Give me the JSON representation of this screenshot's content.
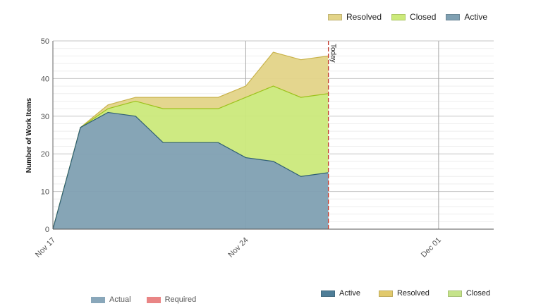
{
  "legend_top": [
    {
      "label": "Resolved",
      "color": "#e3d488"
    },
    {
      "label": "Closed",
      "color": "#ccea7a"
    },
    {
      "label": "Active",
      "color": "#7fa0b2"
    }
  ],
  "legend_bottom_right": [
    {
      "label": "Active",
      "color": "#4e7d97"
    },
    {
      "label": "Resolved",
      "color": "#e1c96c"
    },
    {
      "label": "Closed",
      "color": "#c5e38a"
    }
  ],
  "legend_bottom_left": [
    {
      "label": "Actual",
      "color": "#89a7ba"
    },
    {
      "label": "Required",
      "color": "#e98585"
    }
  ],
  "chart_data": {
    "type": "area",
    "stacked": true,
    "xlabel": "",
    "ylabel": "Number of Work Items",
    "ylim": [
      0,
      50
    ],
    "yticks": [
      0,
      10,
      20,
      30,
      40,
      50
    ],
    "xlim": [
      "2020-11-17",
      "2020-12-03"
    ],
    "xtick_labels": [
      "Nov 17",
      "Nov 24",
      "Dec 01"
    ],
    "xtick_dates": [
      "2020-11-17",
      "2020-11-24",
      "2020-12-01"
    ],
    "x": [
      "2020-11-17",
      "2020-11-18",
      "2020-11-19",
      "2020-11-20",
      "2020-11-21",
      "2020-11-22",
      "2020-11-23",
      "2020-11-24",
      "2020-11-25",
      "2020-11-26",
      "2020-11-27"
    ],
    "series": [
      {
        "name": "Active",
        "color": "#7fa0b2",
        "line": "#2f5f74",
        "values": [
          0,
          27,
          31,
          30,
          23,
          23,
          23,
          19,
          18,
          14,
          15
        ]
      },
      {
        "name": "Closed",
        "color": "#cbe97b",
        "line": "#9bc21a",
        "values": [
          0,
          0,
          1,
          4,
          9,
          9,
          9,
          16,
          20,
          21,
          21
        ]
      },
      {
        "name": "Resolved",
        "color": "#e3d488",
        "line": "#c9b34c",
        "values": [
          0,
          0,
          1,
          1,
          3,
          3,
          3,
          3,
          9,
          10,
          10
        ]
      }
    ],
    "today": {
      "date": "2020-11-27",
      "label": "Today",
      "color": "#c0392b"
    },
    "grid": true
  }
}
